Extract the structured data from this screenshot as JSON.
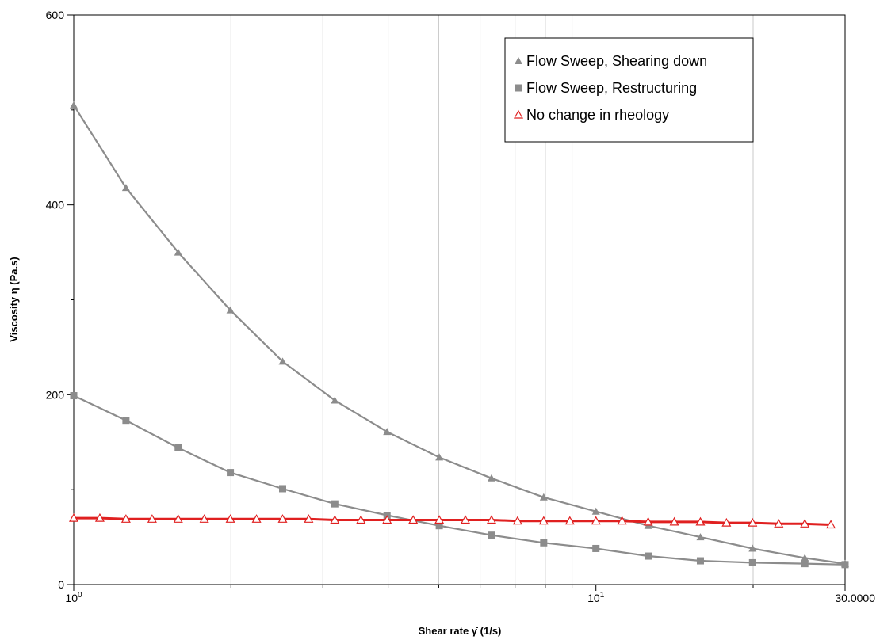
{
  "chart_data": {
    "type": "line",
    "xlabel": "Shear rate  γ̇  (1/s)",
    "ylabel": "Viscosity  η  (Pa.s)",
    "xscale": "log",
    "xlim": [
      1,
      30
    ],
    "ylim": [
      0,
      600
    ],
    "x_tick_labels": [
      {
        "value": 1,
        "base": "10",
        "exp": "0"
      },
      {
        "value": 10,
        "base": "10",
        "exp": "1"
      },
      {
        "value": 30,
        "text": "30.0000"
      }
    ],
    "y_tick_labels": [
      {
        "value": 0,
        "text": "0"
      },
      {
        "value": 200,
        "text": "200"
      },
      {
        "value": 400,
        "text": "400"
      },
      {
        "value": 600,
        "text": "600"
      }
    ],
    "y_minor_ticks": [
      100,
      300,
      500
    ],
    "grid": "vertical",
    "legend": "top-right",
    "series": [
      {
        "name": "Flow Sweep, Shearing down",
        "marker": "triangle-filled",
        "color": "#8c8c8c",
        "x": [
          1.0,
          1.259,
          1.585,
          1.995,
          2.512,
          3.162,
          3.981,
          5.012,
          6.31,
          7.943,
          10.0,
          12.59,
          15.85,
          19.95,
          25.12,
          30.0
        ],
        "y": [
          505,
          418,
          350,
          289,
          235,
          194,
          161,
          134,
          112,
          92,
          77,
          62,
          50,
          38,
          28,
          22
        ]
      },
      {
        "name": "Flow Sweep, Restructuring",
        "marker": "square-filled",
        "color": "#8c8c8c",
        "x": [
          1.0,
          1.259,
          1.585,
          1.995,
          2.512,
          3.162,
          3.981,
          5.012,
          6.31,
          7.943,
          10.0,
          12.59,
          15.85,
          19.95,
          25.12,
          30.0
        ],
        "y": [
          199,
          173,
          144,
          118,
          101,
          85,
          73,
          62,
          52,
          44,
          38,
          30,
          25,
          23,
          22,
          21
        ]
      },
      {
        "name": "No change in rheology",
        "marker": "triangle-open",
        "color": "#e02020",
        "x": [
          1.0,
          1.122,
          1.259,
          1.413,
          1.585,
          1.778,
          1.995,
          2.239,
          2.512,
          2.818,
          3.162,
          3.548,
          3.981,
          4.467,
          5.012,
          5.623,
          6.31,
          7.079,
          7.943,
          8.913,
          10.0,
          11.22,
          12.59,
          14.13,
          15.85,
          17.78,
          19.95,
          22.39,
          25.12,
          28.18
        ],
        "y": [
          70,
          70,
          69,
          69,
          69,
          69,
          69,
          69,
          69,
          69,
          68,
          68,
          68,
          68,
          68,
          68,
          68,
          67,
          67,
          67,
          67,
          67,
          66,
          66,
          66,
          65,
          65,
          64,
          64,
          63
        ]
      }
    ]
  }
}
